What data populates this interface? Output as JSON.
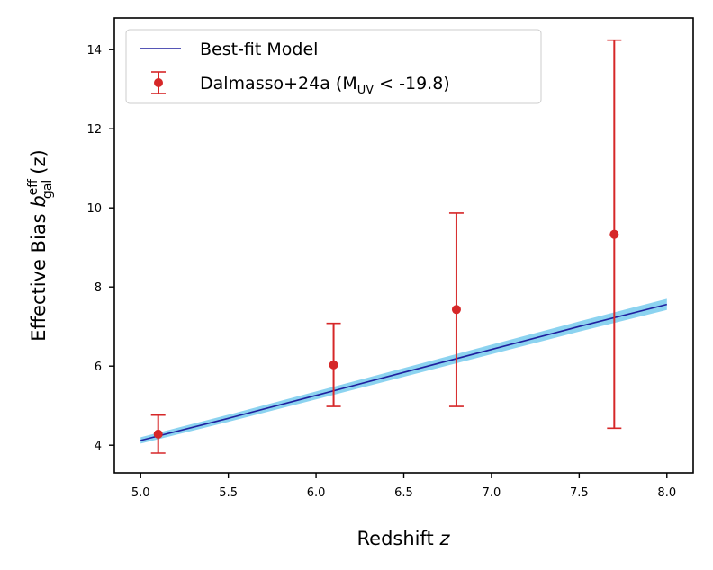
{
  "chart_data": {
    "type": "line",
    "xlabel": "Redshift",
    "xlabel_var": "z",
    "ylabel": "Effective Bias",
    "ylabel_symbol": "b",
    "ylabel_sup": "eff",
    "ylabel_sub": "gal",
    "ylabel_suffix": "(z)",
    "xlim": [
      4.85,
      8.15
    ],
    "ylim": [
      3.3,
      14.8
    ],
    "xticks": [
      "5.0",
      "5.5",
      "6.0",
      "6.5",
      "7.0",
      "7.5",
      "8.0"
    ],
    "yticks": [
      "4",
      "6",
      "8",
      "10",
      "12",
      "14"
    ],
    "legend_position": "top-left",
    "series": [
      {
        "name": "Best-fit Model",
        "kind": "line",
        "color": "#1f1f9e",
        "x": [
          5.0,
          5.5,
          6.0,
          6.5,
          7.0,
          7.5,
          8.0
        ],
        "y": [
          4.12,
          4.68,
          5.26,
          5.84,
          6.42,
          7.0,
          7.56
        ],
        "band_color": "#5bc0ea",
        "band_halfwidth": [
          0.08,
          0.09,
          0.1,
          0.11,
          0.12,
          0.13,
          0.14
        ]
      },
      {
        "name": "Dalmasso+24a",
        "legend_prefix": "Dalmasso+24a (M",
        "legend_sub": "UV",
        "legend_suffix": " < -19.8)",
        "kind": "errorbar",
        "color": "#d62728",
        "x": [
          5.1,
          6.1,
          6.8,
          7.7
        ],
        "y": [
          4.28,
          6.03,
          7.43,
          9.33
        ],
        "yerr_low": [
          3.8,
          4.98,
          4.98,
          4.43
        ],
        "yerr_high": [
          4.76,
          7.08,
          9.87,
          14.24
        ]
      }
    ]
  }
}
